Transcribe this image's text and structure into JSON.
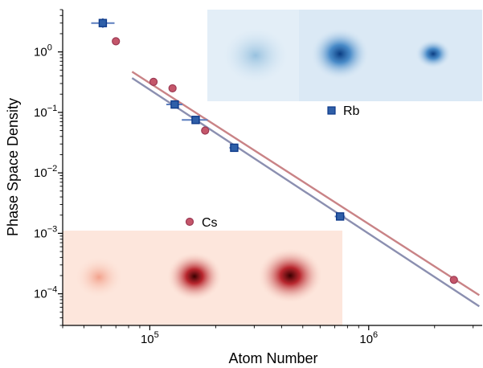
{
  "chart_data": {
    "type": "scatter",
    "xlabel": "Atom Number",
    "ylabel": "Phase Space Density",
    "xscale": "log",
    "yscale": "log",
    "xlim": [
      40000,
      3300000
    ],
    "ylim": [
      3e-05,
      5
    ],
    "xticks": [
      {
        "value": 100000,
        "base": "10",
        "exp": "5"
      },
      {
        "value": 1000000,
        "base": "10",
        "exp": "6"
      }
    ],
    "yticks": [
      {
        "value": 0.0001,
        "base": "10",
        "exp": "−4"
      },
      {
        "value": 0.001,
        "base": "10",
        "exp": "−3"
      },
      {
        "value": 0.01,
        "base": "10",
        "exp": "−2"
      },
      {
        "value": 0.1,
        "base": "10",
        "exp": "−1"
      },
      {
        "value": 1,
        "base": "10",
        "exp": "0"
      }
    ],
    "series": [
      {
        "name": "Rb",
        "marker": "square",
        "color": "#2f5fa8",
        "points": [
          {
            "x": 61000,
            "y": 3.0,
            "xerr": [
              7000,
              8000
            ],
            "yerr": [
              0.5,
              0.6
            ]
          },
          {
            "x": 130000,
            "y": 0.135,
            "xerr": [
              11000,
              11000
            ]
          },
          {
            "x": 162000,
            "y": 0.075,
            "xerr": [
              22000,
              22000
            ]
          },
          {
            "x": 243000,
            "y": 0.026,
            "xerr": [
              12000,
              12000
            ]
          },
          {
            "x": 740000,
            "y": 0.0019,
            "xerr": [
              40000,
              40000
            ]
          }
        ],
        "fit": {
          "x": [
            83000,
            3200000
          ],
          "y": [
            0.37,
            6.2e-05
          ],
          "color": "#8b8fb0"
        }
      },
      {
        "name": "Cs",
        "marker": "circle",
        "color": "#c4566a",
        "points": [
          {
            "x": 70000,
            "y": 1.5
          },
          {
            "x": 104000,
            "y": 0.32
          },
          {
            "x": 127000,
            "y": 0.25
          },
          {
            "x": 179000,
            "y": 0.05
          },
          {
            "x": 2450000,
            "y": 0.00017
          }
        ],
        "fit": {
          "x": [
            83000,
            3200000
          ],
          "y": [
            0.47,
            9.5e-05
          ],
          "color": "#c98386"
        }
      }
    ]
  }
}
